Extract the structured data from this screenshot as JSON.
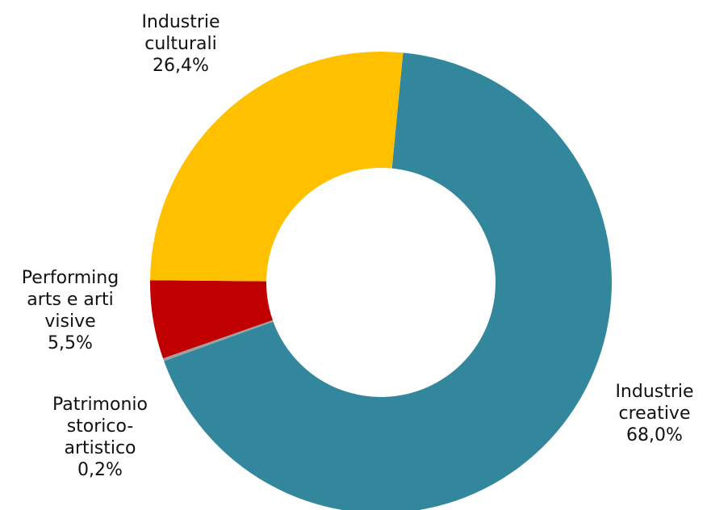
{
  "chart_data": {
    "type": "pie",
    "variant": "donut",
    "start_angle_deg": 5.5,
    "direction": "clockwise",
    "slices": [
      {
        "key": "creative",
        "label_lines": [
          "Industrie",
          "creative"
        ],
        "value_label": "68,0%",
        "value": 68.0,
        "color": "#33879d"
      },
      {
        "key": "patrimonio",
        "label_lines": [
          "Patrimonio",
          "storico-",
          "artistico"
        ],
        "value_label": "0,2%",
        "value": 0.2,
        "color": "#a0a0a0"
      },
      {
        "key": "performing",
        "label_lines": [
          "Performing",
          "arts e arti",
          "visive"
        ],
        "value_label": "5,5%",
        "value": 5.5,
        "color": "#c00000"
      },
      {
        "key": "culturali",
        "label_lines": [
          "Industrie",
          "culturali"
        ],
        "value_label": "26,4%",
        "value": 26.4,
        "color": "#ffc000"
      }
    ]
  }
}
